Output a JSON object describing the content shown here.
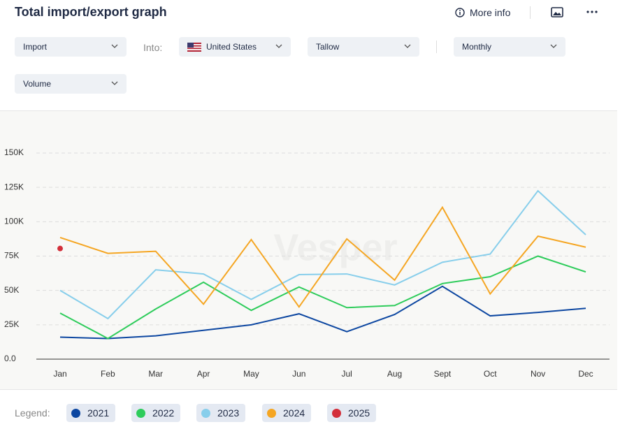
{
  "header": {
    "title": "Total import/export graph",
    "more_info": "More info"
  },
  "controls": {
    "flow": "Import",
    "into_label": "Into:",
    "country": "United States",
    "product": "Tallow",
    "frequency": "Monthly",
    "measure": "Volume"
  },
  "chart_data": {
    "type": "line",
    "watermark": "Vesper",
    "categories": [
      "Jan",
      "Feb",
      "Mar",
      "Apr",
      "May",
      "Jun",
      "Jul",
      "Aug",
      "Sept",
      "Oct",
      "Nov",
      "Dec"
    ],
    "series": [
      {
        "name": "2021",
        "color": "#0d47a1",
        "values": [
          16000,
          15000,
          17000,
          21000,
          25000,
          33000,
          20000,
          32500,
          53000,
          31500,
          34000,
          37000
        ]
      },
      {
        "name": "2022",
        "color": "#2ecc5b",
        "values": [
          33500,
          15000,
          36500,
          56000,
          35500,
          52500,
          37500,
          39000,
          55000,
          60000,
          75000,
          63500
        ]
      },
      {
        "name": "2023",
        "color": "#87ceeb",
        "values": [
          50000,
          29500,
          65000,
          62000,
          43500,
          61500,
          62000,
          54000,
          70500,
          76500,
          122500,
          90500
        ]
      },
      {
        "name": "2024",
        "color": "#f5a623",
        "values": [
          88500,
          77000,
          78500,
          40000,
          87000,
          38000,
          87500,
          57500,
          110500,
          47500,
          89500,
          81500
        ]
      },
      {
        "name": "2025",
        "color": "#d32f3a",
        "values": [
          80500,
          null,
          null,
          null,
          null,
          null,
          null,
          null,
          null,
          null,
          null,
          null
        ]
      }
    ],
    "ylim": [
      0,
      150000
    ],
    "yticks": [
      {
        "value": 0,
        "label": "0.0"
      },
      {
        "value": 25000,
        "label": "25K"
      },
      {
        "value": 50000,
        "label": "50K"
      },
      {
        "value": 75000,
        "label": "75K"
      },
      {
        "value": 100000,
        "label": "100K"
      },
      {
        "value": 125000,
        "label": "125K"
      },
      {
        "value": 150000,
        "label": "150K"
      }
    ],
    "grid": true,
    "legend_title": "Legend:"
  }
}
